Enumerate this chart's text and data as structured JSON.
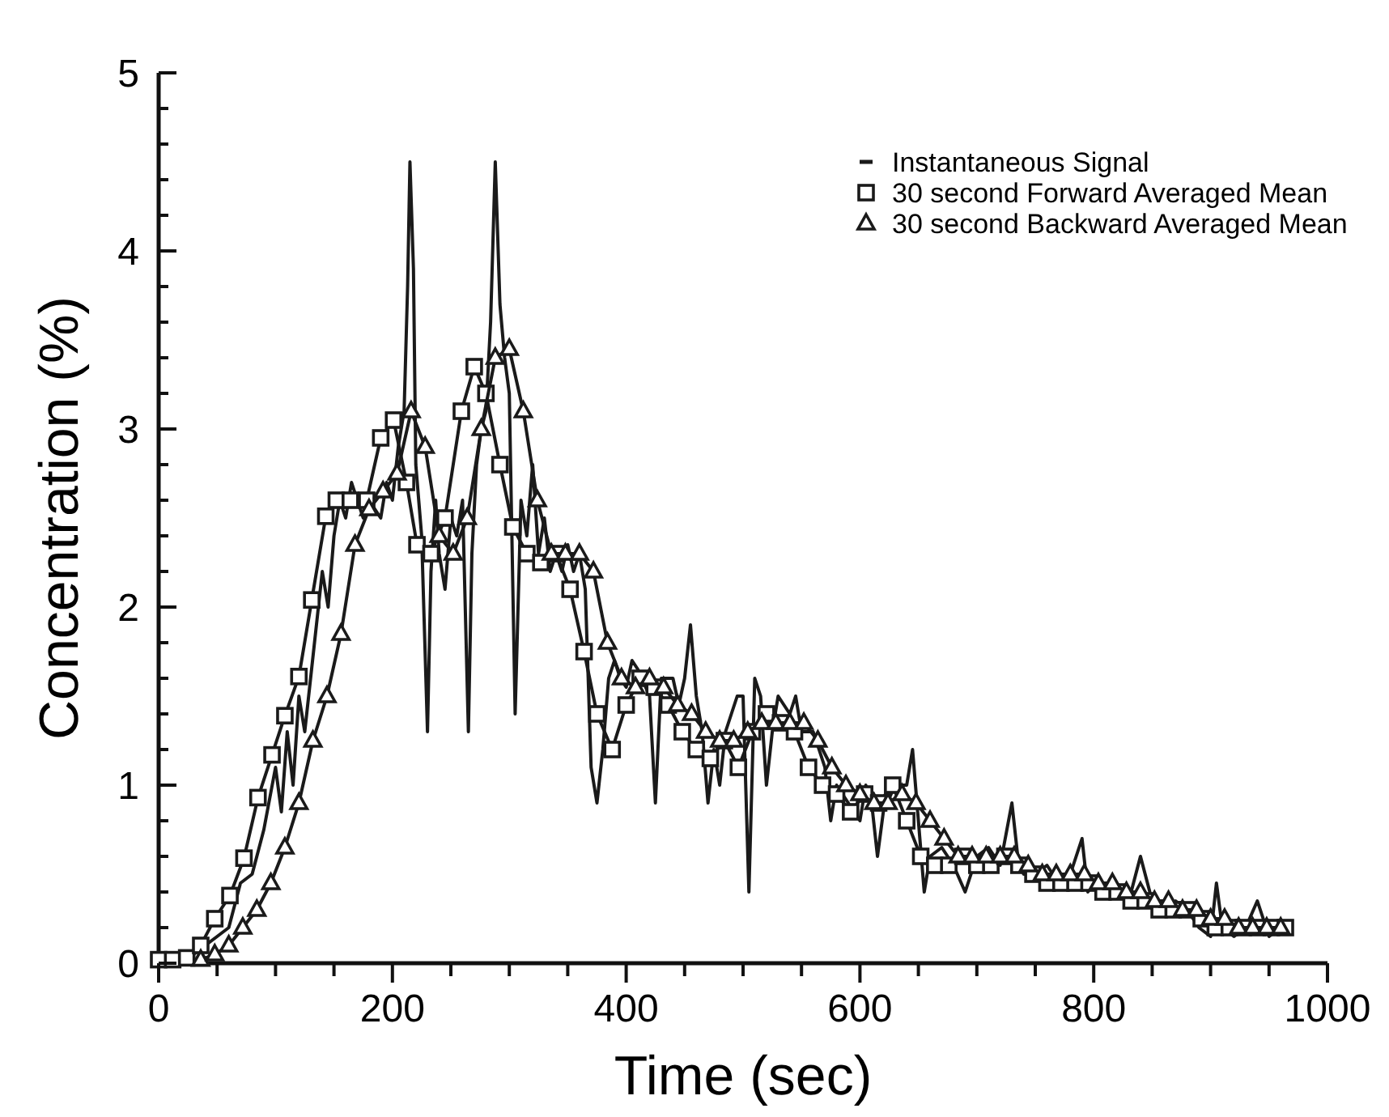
{
  "chart_data": {
    "type": "line",
    "xlabel": "Time  (sec)",
    "ylabel": "Concentration  (%)",
    "xlim": [
      0,
      1000
    ],
    "ylim": [
      0,
      5
    ],
    "xticks": [
      0,
      {
        "value": 50,
        "label": null
      },
      200,
      {
        "value": 100,
        "label": null
      },
      {
        "value": 150,
        "label": null
      },
      {
        "value": 250,
        "label": null
      },
      {
        "value": 300,
        "label": null
      },
      {
        "value": 350,
        "label": null
      },
      400,
      {
        "value": 450,
        "label": null
      },
      {
        "value": 500,
        "label": null
      },
      {
        "value": 550,
        "label": null
      },
      600,
      {
        "value": 650,
        "label": null
      },
      {
        "value": 700,
        "label": null
      },
      {
        "value": 750,
        "label": null
      },
      800,
      {
        "value": 850,
        "label": null
      },
      {
        "value": 900,
        "label": null
      },
      {
        "value": 950,
        "label": null
      },
      1000
    ],
    "yticks": [
      0,
      {
        "value": 0.2,
        "label": null
      },
      {
        "value": 0.4,
        "label": null
      },
      {
        "value": 0.6,
        "label": null
      },
      {
        "value": 0.8,
        "label": null
      },
      1,
      {
        "value": 1.2,
        "label": null
      },
      {
        "value": 1.4,
        "label": null
      },
      {
        "value": 1.6,
        "label": null
      },
      {
        "value": 1.8,
        "label": null
      },
      2,
      {
        "value": 2.2,
        "label": null
      },
      {
        "value": 2.4,
        "label": null
      },
      {
        "value": 2.6,
        "label": null
      },
      {
        "value": 2.8,
        "label": null
      },
      3,
      {
        "value": 3.2,
        "label": null
      },
      {
        "value": 3.4,
        "label": null
      },
      {
        "value": 3.6,
        "label": null
      },
      {
        "value": 3.8,
        "label": null
      },
      4,
      {
        "value": 4.2,
        "label": null
      },
      {
        "value": 4.4,
        "label": null
      },
      {
        "value": 4.6,
        "label": null
      },
      {
        "value": 4.8,
        "label": null
      },
      5
    ],
    "grid": false,
    "legend": "top right",
    "line_style": "solid",
    "series": [
      {
        "name": "Instantaneous Signal",
        "color": "#1a1a1a",
        "marker": "none",
        "x": [
          0,
          10,
          20,
          30,
          40,
          50,
          60,
          70,
          80,
          90,
          100,
          105,
          110,
          115,
          120,
          125,
          130,
          135,
          140,
          145,
          150,
          155,
          160,
          165,
          170,
          175,
          180,
          185,
          190,
          195,
          200,
          205,
          210,
          213,
          215,
          218,
          220,
          225,
          230,
          233,
          237,
          240,
          245,
          250,
          255,
          260,
          265,
          268,
          272,
          276,
          280,
          284,
          288,
          292,
          296,
          300,
          305,
          310,
          315,
          320,
          325,
          330,
          335,
          340,
          345,
          350,
          355,
          360,
          365,
          370,
          375,
          380,
          385,
          390,
          395,
          400,
          405,
          410,
          420,
          425,
          430,
          440,
          445,
          450,
          455,
          460,
          465,
          470,
          475,
          480,
          485,
          490,
          495,
          500,
          505,
          510,
          515,
          520,
          525,
          530,
          540,
          545,
          550,
          560,
          570,
          575,
          580,
          590,
          600,
          605,
          610,
          615,
          620,
          630,
          640,
          645,
          650,
          655,
          660,
          670,
          680,
          690,
          700,
          710,
          720,
          730,
          735,
          740,
          750,
          760,
          770,
          780,
          790,
          795,
          800,
          810,
          820,
          830,
          840,
          850,
          860,
          870,
          880,
          890,
          900,
          905,
          910,
          920,
          930,
          940,
          950,
          960,
          970
        ],
        "values": [
          0.05,
          0.05,
          0.03,
          0.05,
          0.1,
          0.15,
          0.2,
          0.45,
          0.5,
          0.75,
          1.1,
          0.85,
          1.3,
          1.0,
          1.5,
          1.3,
          1.6,
          1.9,
          2.2,
          2.0,
          2.4,
          2.6,
          2.5,
          2.7,
          2.6,
          2.5,
          2.6,
          2.55,
          2.5,
          2.7,
          2.6,
          2.9,
          3.1,
          3.8,
          4.5,
          3.9,
          2.8,
          2.4,
          1.3,
          2.2,
          2.6,
          2.3,
          2.1,
          2.5,
          2.4,
          2.6,
          1.3,
          2.3,
          2.8,
          3.0,
          3.1,
          3.6,
          4.5,
          3.7,
          3.4,
          3.2,
          1.4,
          2.6,
          2.4,
          2.8,
          2.3,
          2.5,
          2.2,
          2.3,
          2.2,
          2.35,
          2.2,
          2.3,
          2.1,
          1.1,
          0.9,
          1.2,
          1.6,
          1.7,
          1.6,
          1.55,
          1.7,
          1.65,
          1.5,
          0.9,
          1.6,
          1.6,
          1.45,
          1.6,
          1.9,
          1.5,
          1.3,
          0.9,
          1.2,
          1.0,
          1.3,
          1.4,
          1.5,
          1.5,
          0.4,
          1.6,
          1.5,
          1.0,
          1.3,
          1.5,
          1.4,
          1.5,
          1.3,
          1.3,
          1.1,
          0.8,
          1.0,
          0.9,
          0.8,
          1.0,
          0.9,
          0.6,
          0.85,
          1.0,
          1.0,
          1.2,
          0.8,
          0.4,
          0.6,
          0.65,
          0.55,
          0.4,
          0.6,
          0.65,
          0.55,
          0.9,
          0.6,
          0.5,
          0.5,
          0.55,
          0.45,
          0.5,
          0.7,
          0.4,
          0.45,
          0.45,
          0.4,
          0.35,
          0.6,
          0.35,
          0.3,
          0.35,
          0.3,
          0.2,
          0.15,
          0.45,
          0.2,
          0.15,
          0.2,
          0.35,
          0.15,
          0.2,
          0.2
        ]
      },
      {
        "name": "30 second Forward Averaged Mean",
        "color": "#1a1a1a",
        "marker": "square",
        "x": [
          0,
          12,
          24,
          36,
          48,
          61,
          73,
          85,
          97,
          108,
          120,
          131,
          143,
          152,
          164,
          178,
          190,
          201,
          212,
          221,
          233,
          245,
          259,
          270,
          280,
          292,
          303,
          315,
          327,
          340,
          352,
          364,
          375,
          388,
          400,
          412,
          424,
          436,
          448,
          460,
          472,
          484,
          496,
          508,
          520,
          532,
          544,
          556,
          568,
          580,
          592,
          604,
          616,
          628,
          640,
          652,
          664,
          676,
          688,
          700,
          712,
          724,
          736,
          748,
          760,
          772,
          784,
          796,
          808,
          820,
          832,
          844,
          856,
          868,
          880,
          892,
          904,
          916,
          928,
          940,
          952,
          964
        ],
        "values": [
          0.02,
          0.02,
          0.03,
          0.1,
          0.25,
          0.38,
          0.59,
          0.93,
          1.17,
          1.39,
          1.61,
          2.04,
          2.51,
          2.6,
          2.6,
          2.6,
          2.95,
          3.05,
          2.7,
          2.35,
          2.3,
          2.5,
          3.1,
          3.35,
          3.2,
          2.8,
          2.45,
          2.3,
          2.25,
          2.3,
          2.1,
          1.75,
          1.4,
          1.2,
          1.45,
          1.6,
          1.55,
          1.45,
          1.3,
          1.2,
          1.15,
          1.25,
          1.1,
          1.3,
          1.4,
          1.35,
          1.3,
          1.1,
          1.0,
          0.95,
          0.85,
          0.95,
          0.9,
          1.0,
          0.8,
          0.6,
          0.55,
          0.55,
          0.6,
          0.55,
          0.55,
          0.6,
          0.55,
          0.5,
          0.45,
          0.45,
          0.45,
          0.45,
          0.4,
          0.4,
          0.35,
          0.35,
          0.3,
          0.3,
          0.3,
          0.25,
          0.2,
          0.2,
          0.2,
          0.2,
          0.2,
          0.2
        ]
      },
      {
        "name": "30 second Backward Averaged Mean",
        "color": "#1a1a1a",
        "marker": "triangle",
        "x": [
          36,
          48,
          60,
          72,
          84,
          96,
          108,
          120,
          132,
          144,
          156,
          168,
          180,
          192,
          204,
          216,
          228,
          240,
          252,
          264,
          276,
          288,
          300,
          312,
          324,
          336,
          348,
          360,
          372,
          384,
          396,
          408,
          420,
          432,
          444,
          456,
          468,
          480,
          492,
          504,
          516,
          528,
          540,
          552,
          564,
          576,
          588,
          600,
          612,
          624,
          636,
          648,
          660,
          672,
          684,
          696,
          708,
          720,
          732,
          744,
          756,
          768,
          780,
          792,
          804,
          816,
          828,
          840,
          852,
          864,
          876,
          888,
          900,
          912,
          924,
          936,
          948,
          960
        ],
        "values": [
          0.02,
          0.05,
          0.1,
          0.2,
          0.3,
          0.45,
          0.65,
          0.9,
          1.25,
          1.5,
          1.85,
          2.35,
          2.55,
          2.65,
          2.75,
          3.1,
          2.9,
          2.4,
          2.3,
          2.5,
          3.0,
          3.4,
          3.45,
          3.1,
          2.6,
          2.3,
          2.3,
          2.3,
          2.2,
          1.8,
          1.6,
          1.55,
          1.6,
          1.55,
          1.45,
          1.4,
          1.3,
          1.25,
          1.25,
          1.3,
          1.35,
          1.35,
          1.35,
          1.35,
          1.25,
          1.1,
          1.0,
          0.95,
          0.9,
          0.9,
          0.95,
          0.9,
          0.8,
          0.7,
          0.6,
          0.6,
          0.6,
          0.6,
          0.6,
          0.55,
          0.5,
          0.5,
          0.5,
          0.5,
          0.45,
          0.45,
          0.4,
          0.4,
          0.35,
          0.35,
          0.3,
          0.3,
          0.25,
          0.25,
          0.2,
          0.2,
          0.2,
          0.2
        ]
      }
    ]
  }
}
